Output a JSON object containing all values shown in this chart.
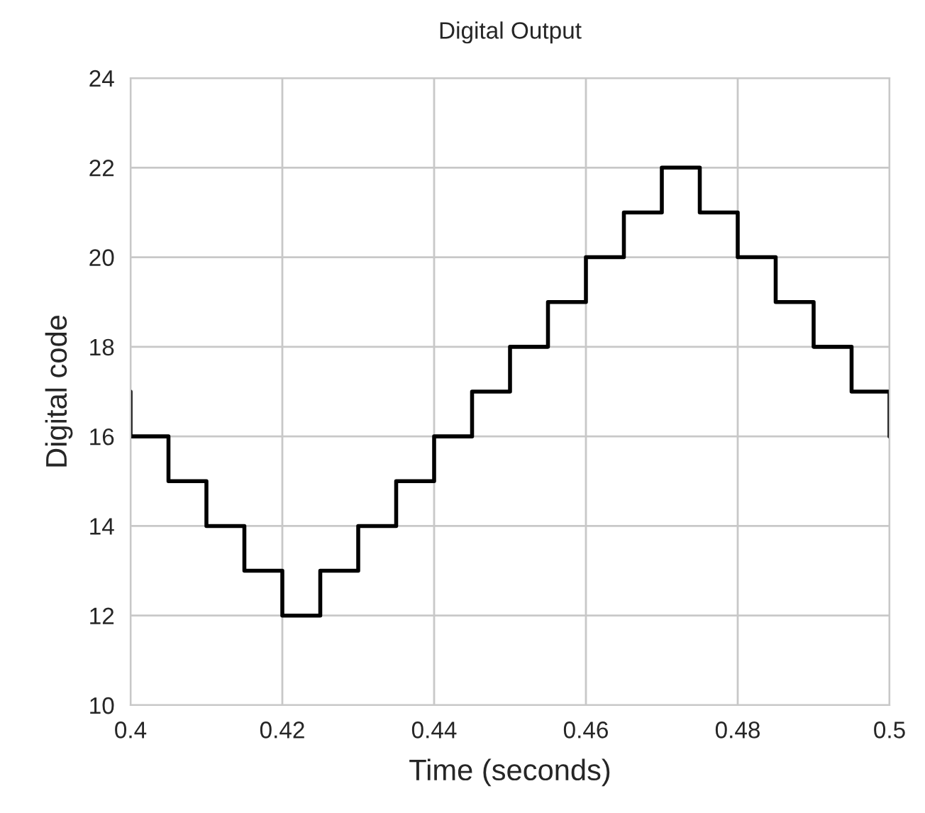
{
  "chart_data": {
    "type": "step",
    "title": "Digital Output",
    "xlabel": "Time (seconds)",
    "ylabel": "Digital code",
    "x": [
      0.4,
      0.4,
      0.405,
      0.41,
      0.415,
      0.42,
      0.425,
      0.43,
      0.435,
      0.44,
      0.445,
      0.45,
      0.455,
      0.46,
      0.465,
      0.47,
      0.475,
      0.48,
      0.485,
      0.49,
      0.495,
      0.5
    ],
    "series": [
      {
        "color": "#000000",
        "values": [
          17,
          16,
          15,
          14,
          13,
          12,
          13,
          14,
          15,
          16,
          17,
          18,
          19,
          20,
          21,
          22,
          21,
          20,
          19,
          18,
          17,
          16
        ]
      }
    ],
    "xlim": [
      0.4,
      0.5
    ],
    "xticks": [
      0.4,
      0.42,
      0.44,
      0.46,
      0.48,
      0.5
    ],
    "ylim": [
      10,
      24
    ],
    "yticks": [
      10,
      12,
      14,
      16,
      18,
      20,
      22,
      24
    ],
    "grid": true,
    "marker": "none",
    "line_style": "solid"
  }
}
